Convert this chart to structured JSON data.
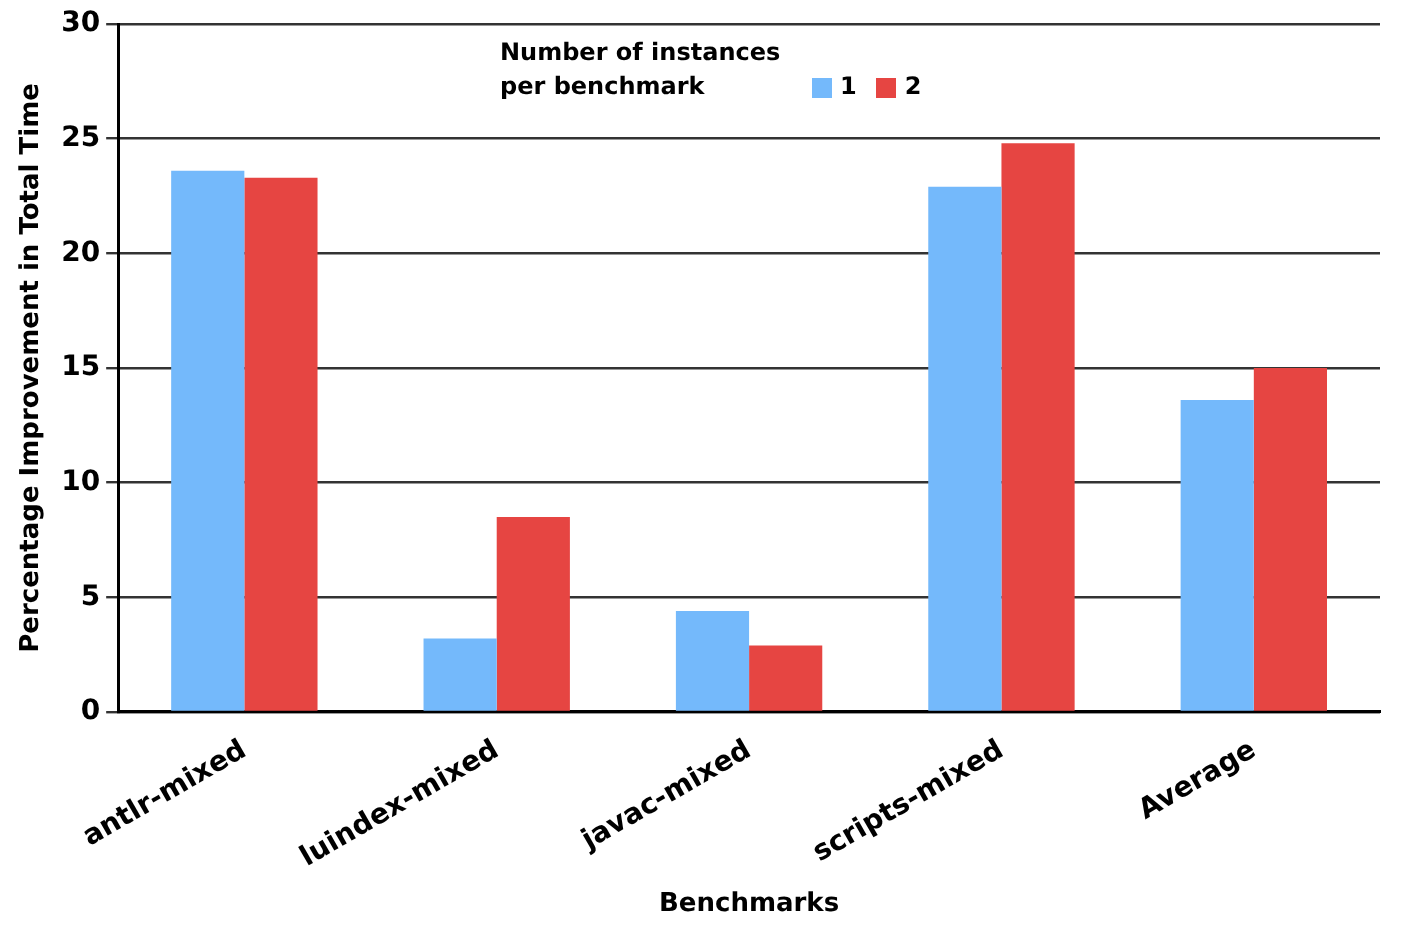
{
  "chart_data": {
    "type": "bar",
    "xlabel": "Benchmarks",
    "ylabel": "Percentage Improvement in Total Time",
    "legend_title": "Number of instances per benchmark",
    "legend": "top",
    "grid": "y",
    "categories": [
      "antlr-mixed",
      "luindex-mixed",
      "javac-mixed",
      "scripts-mixed",
      "Average"
    ],
    "ylim": [
      0,
      30
    ],
    "yticks": [
      0,
      5,
      10,
      15,
      20,
      25,
      30
    ],
    "series": [
      {
        "name": "1",
        "color": "#74b9fb",
        "values": [
          23.6,
          3.2,
          4.4,
          22.9,
          13.6
        ]
      },
      {
        "name": "2",
        "color": "#e64542",
        "values": [
          23.3,
          8.5,
          2.9,
          24.8,
          15.0
        ]
      }
    ]
  }
}
